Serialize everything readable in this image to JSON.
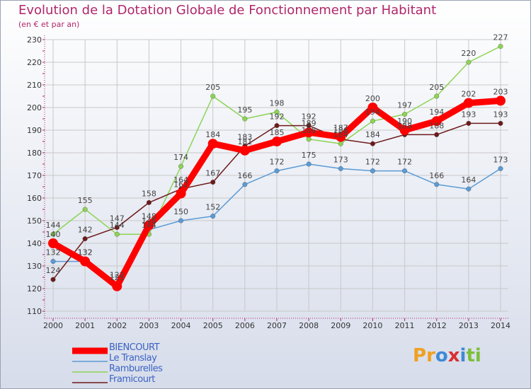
{
  "header": {
    "title": "Evolution de la Dotation Globale de Fonctionnement par Habitant",
    "subtitle": "(en € et par an)"
  },
  "logo": {
    "text": "Proxiti",
    "letters": [
      {
        "ch": "P",
        "color": "#f0a020"
      },
      {
        "ch": "r",
        "color": "#f0a020"
      },
      {
        "ch": "o",
        "color": "#3d8ad6"
      },
      {
        "ch": "x",
        "color": "#d83030"
      },
      {
        "ch": "i",
        "color": "#3d8ad6"
      },
      {
        "ch": "t",
        "color": "#7cbf3a"
      },
      {
        "ch": "i",
        "color": "#7cbf3a"
      }
    ]
  },
  "chart_data": {
    "type": "line",
    "title": "Evolution de la Dotation Globale de Fonctionnement par Habitant",
    "subtitle": "(en € et par an)",
    "x": [
      2000,
      2001,
      2002,
      2003,
      2004,
      2005,
      2006,
      2007,
      2008,
      2009,
      2010,
      2011,
      2012,
      2013,
      2014
    ],
    "ylim": [
      110,
      230
    ],
    "yticks": [
      110,
      120,
      130,
      140,
      150,
      160,
      170,
      180,
      190,
      200,
      210,
      220,
      230
    ],
    "grid": true,
    "legend": "bottom-left",
    "series": [
      {
        "name": "BIENCOURT",
        "color": "#ff0000",
        "thick": true,
        "values": [
          140,
          132,
          121,
          148,
          162,
          184,
          181,
          185,
          189,
          187,
          200,
          190,
          194,
          202,
          203
        ]
      },
      {
        "name": "Le Translay",
        "color": "#5b9bd5",
        "thick": false,
        "values": [
          132,
          132,
          122,
          146,
          150,
          152,
          166,
          172,
          175,
          173,
          172,
          172,
          166,
          164,
          173
        ]
      },
      {
        "name": "Ramburelles",
        "color": "#8cd454",
        "thick": false,
        "values": [
          144,
          155,
          144,
          144,
          174,
          205,
          195,
          198,
          186,
          184,
          194,
          197,
          205,
          220,
          227
        ]
      },
      {
        "name": "Framicourt",
        "color": "#6e1a1a",
        "thick": false,
        "values": [
          124,
          142,
          147,
          158,
          164,
          167,
          183,
          192,
          192,
          186,
          184,
          188,
          188,
          193,
          193
        ]
      }
    ]
  }
}
